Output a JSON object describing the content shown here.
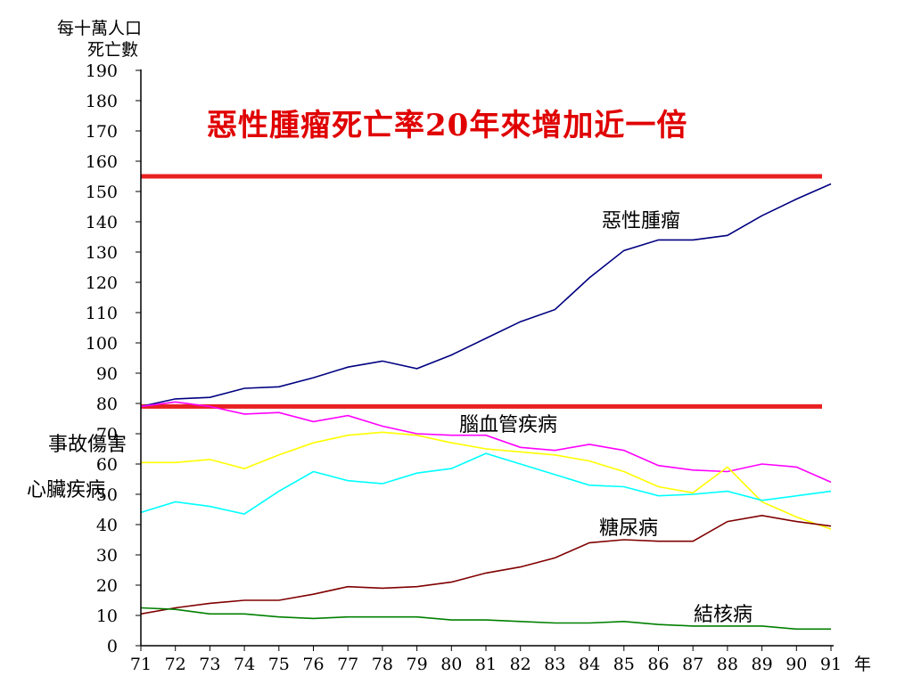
{
  "chart_data": {
    "type": "line",
    "title": "惡性腫瘤死亡率20年來增加近一倍",
    "ylabel_line1": "每十萬人口",
    "ylabel_line2": "死亡數",
    "xunit": "年",
    "ylim": [
      0,
      190
    ],
    "yticks": [
      0,
      10,
      20,
      30,
      40,
      50,
      60,
      70,
      80,
      90,
      100,
      110,
      120,
      130,
      140,
      150,
      160,
      170,
      180,
      190
    ],
    "x": [
      "71",
      "72",
      "73",
      "74",
      "75",
      "76",
      "77",
      "78",
      "79",
      "80",
      "81",
      "82",
      "83",
      "84",
      "85",
      "86",
      "87",
      "88",
      "89",
      "90",
      "91"
    ],
    "reference_lines": [
      {
        "value": 155,
        "color": "#e82020"
      },
      {
        "value": 79,
        "color": "#e82020"
      }
    ],
    "series": [
      {
        "name": "惡性腫瘤",
        "color": "#000080",
        "values": [
          79,
          81.5,
          82,
          85,
          85.5,
          88.5,
          92,
          94,
          91.5,
          96,
          101.5,
          107,
          111,
          121.5,
          130.5,
          134,
          134,
          135.5,
          142,
          147.5,
          152.5
        ]
      },
      {
        "name": "腦血管疾病",
        "color": "#ff00ff",
        "values": [
          79,
          80.5,
          79,
          76.5,
          77,
          74,
          76,
          72.5,
          70,
          69.5,
          69.5,
          65.5,
          64.5,
          66.5,
          64.5,
          59.5,
          58,
          57.5,
          60,
          59,
          54
        ]
      },
      {
        "name": "事故傷害",
        "color": "#ffff00",
        "values": [
          60.5,
          60.5,
          61.5,
          58.5,
          63,
          67,
          69.5,
          70.5,
          69.5,
          67,
          65,
          64,
          63,
          61,
          57.5,
          52.5,
          50.5,
          59,
          47.5,
          42.5,
          38.5
        ]
      },
      {
        "name": "心臟疾病",
        "color": "#00ffff",
        "values": [
          44,
          47.5,
          46,
          43.5,
          51,
          57.5,
          54.5,
          53.5,
          57,
          58.5,
          63.5,
          60,
          56.5,
          53,
          52.5,
          49.5,
          50,
          51,
          48,
          49.5,
          51
        ]
      },
      {
        "name": "糖尿病",
        "color": "#800000",
        "values": [
          10.5,
          12.5,
          14,
          15,
          15,
          17,
          19.5,
          19,
          19.5,
          21,
          24,
          26,
          29,
          34,
          35,
          34.5,
          34.5,
          41,
          43,
          41,
          39.5
        ]
      },
      {
        "name": "結核病",
        "color": "#008000",
        "values": [
          12.5,
          12,
          10.5,
          10.5,
          9.5,
          9,
          9.5,
          9.5,
          9.5,
          8.5,
          8.5,
          8,
          7.5,
          7.5,
          8,
          7,
          6.5,
          6.5,
          6.5,
          5.5,
          5.5
        ]
      }
    ]
  }
}
